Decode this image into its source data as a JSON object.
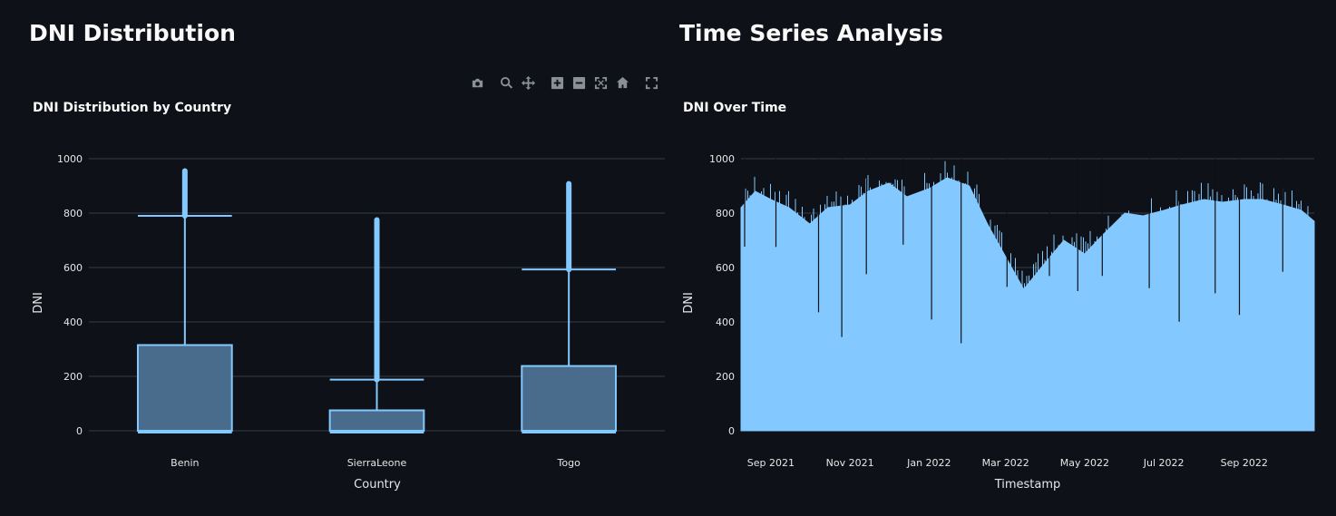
{
  "sections": {
    "left_title": "DNI Distribution",
    "right_title": "Time Series Analysis"
  },
  "toolbar": {
    "icons": [
      "camera-icon",
      "zoom-icon",
      "pan-icon",
      "zoom-in-icon",
      "zoom-out-icon",
      "autoscale-icon",
      "reset-axes-icon",
      "fullscreen-icon"
    ]
  },
  "colors": {
    "background": "#0e1117",
    "box_fill": "#4a6c8c",
    "box_line": "#83c9ff",
    "series": "#83c9ff",
    "grid": "#363b45"
  },
  "chart_data": [
    {
      "type": "box",
      "title": "DNI Distribution by Country",
      "xlabel": "Country",
      "ylabel": "DNI",
      "ylim": [
        0,
        1000
      ],
      "yticks": [
        0,
        200,
        400,
        600,
        800,
        1000
      ],
      "categories": [
        "Benin",
        "SierraLeone",
        "Togo"
      ],
      "boxes": [
        {
          "name": "Benin",
          "min": 0,
          "q1": 0,
          "median": 0,
          "q3": 315,
          "upper_fence": 790,
          "outlier_max": 955
        },
        {
          "name": "SierraLeone",
          "min": 0,
          "q1": 0,
          "median": 0,
          "q3": 75,
          "upper_fence": 188,
          "outlier_max": 775
        },
        {
          "name": "Togo",
          "min": 0,
          "q1": 0,
          "median": 0,
          "q3": 238,
          "upper_fence": 593,
          "outlier_max": 908
        }
      ],
      "legend": "none",
      "grid": true
    },
    {
      "type": "line",
      "title": "DNI Over Time",
      "xlabel": "Timestamp",
      "ylabel": "DNI",
      "ylim": [
        0,
        1000
      ],
      "yticks": [
        0,
        200,
        400,
        600,
        800,
        1000
      ],
      "xrange": [
        "2021-08-09",
        "2022-10-25"
      ],
      "xticks": [
        "Sep 2021",
        "Nov 2021",
        "Jan 2022",
        "Mar 2022",
        "May 2022",
        "Jul 2022",
        "Sep 2022"
      ],
      "xtick_dates": [
        "2021-09-01",
        "2021-11-01",
        "2022-01-01",
        "2022-03-01",
        "2022-05-01",
        "2022-07-01",
        "2022-09-01"
      ],
      "peak_envelope": {
        "dates": [
          "2021-08-09",
          "2021-08-20",
          "2021-09-01",
          "2021-09-15",
          "2021-10-01",
          "2021-10-15",
          "2021-11-01",
          "2021-11-15",
          "2021-12-01",
          "2021-12-15",
          "2022-01-01",
          "2022-01-15",
          "2022-02-01",
          "2022-02-15",
          "2022-03-01",
          "2022-03-15",
          "2022-04-01",
          "2022-04-15",
          "2022-05-01",
          "2022-05-15",
          "2022-06-01",
          "2022-06-15",
          "2022-07-01",
          "2022-07-15",
          "2022-08-01",
          "2022-08-15",
          "2022-09-01",
          "2022-09-15",
          "2022-10-01",
          "2022-10-15",
          "2022-10-25"
        ],
        "values": [
          820,
          880,
          850,
          820,
          760,
          820,
          830,
          880,
          910,
          860,
          890,
          930,
          900,
          760,
          640,
          520,
          620,
          700,
          650,
          720,
          800,
          790,
          810,
          830,
          850,
          840,
          850,
          850,
          830,
          810,
          770
        ]
      },
      "legend": "none",
      "grid": true
    }
  ]
}
